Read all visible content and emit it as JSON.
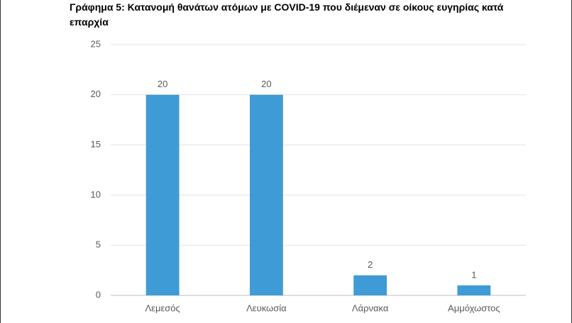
{
  "chart_data": {
    "type": "bar",
    "title": "Γράφημα 5: Κατανομή θανάτων ατόμων με COVID-19 που διέμεναν σε οίκους ευγηρίας κατά επαρχία",
    "categories": [
      "Λεμεσός",
      "Λευκωσία",
      "Λάρνακα",
      "Αμμόχωστος"
    ],
    "values": [
      20,
      20,
      2,
      1
    ],
    "color": "#3f9bd5",
    "ylim": [
      0,
      25
    ],
    "yticks": [
      0,
      5,
      10,
      15,
      20,
      25
    ],
    "grid": true,
    "data_labels": true
  }
}
